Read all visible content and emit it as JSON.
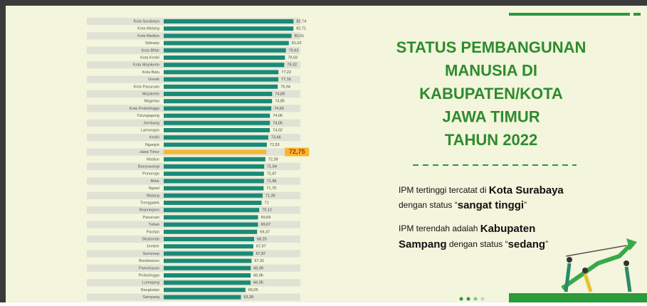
{
  "chart_data": {
    "type": "bar",
    "orientation": "horizontal",
    "categories": [
      "Kota Surabaya",
      "Kota Malang",
      "Kota Madiun",
      "Sidoarjo",
      "Kota Blitar",
      "Kota Kediri",
      "Kota Mojokerto",
      "Kota Batu",
      "Gresik",
      "Kota Pasuruan",
      "Mojokerto",
      "Magetan",
      "Kota Probolinggo",
      "Tulungagung",
      "Jombang",
      "Lamongan",
      "Kediri",
      "Nganjuk",
      "Jawa Timur",
      "Madiun",
      "Banyuwangi",
      "Ponorogo",
      "Blitar",
      "Ngawi",
      "Malang",
      "Trenggalek",
      "Bojonegoro",
      "Pasuruan",
      "Tuban",
      "Pacitan",
      "Situbondo",
      "Jember",
      "Sumenep",
      "Bondowoso",
      "Pamekasan",
      "Probolinggo",
      "Lumajang",
      "Bangkalan",
      "Sampang"
    ],
    "values": [
      82.74,
      82.71,
      82.01,
      81.02,
      79.93,
      79.59,
      79.32,
      77.22,
      77.16,
      76.94,
      74.89,
      74.85,
      74.56,
      74.06,
      74.05,
      74.02,
      73.46,
      72.93,
      72.75,
      72.39,
      71.94,
      71.87,
      71.86,
      71.75,
      71.36,
      71,
      70.12,
      69.69,
      69.67,
      69.37,
      68.25,
      67.97,
      67.87,
      67.31,
      66.99,
      66.96,
      66.95,
      65.05,
      63.39
    ],
    "value_labels": [
      "82,74",
      "82,71",
      "82,01",
      "81,02",
      "79,93",
      "79,59",
      "79,32",
      "77,22",
      "77,16",
      "76,94",
      "74,89",
      "74,85",
      "74,56",
      "74,06",
      "74,05",
      "74,02",
      "73,46",
      "72,93",
      "72,75",
      "72,39",
      "71,94",
      "71,87",
      "71,86",
      "71,75",
      "71,36",
      "71",
      "70,12",
      "69,69",
      "69,67",
      "69,37",
      "68,25",
      "67,97",
      "67,87",
      "67,31",
      "66,99",
      "66,96",
      "66,95",
      "65,05",
      "63,39"
    ],
    "color": "#1a8a78",
    "highlight_color": "#f5b82e",
    "highlight_index": 18,
    "xlim": [
      35,
      85
    ]
  },
  "panel": {
    "title": [
      "STATUS PEMBANGUNAN",
      "MANUSIA DI",
      "KABUPATEN/KOTA",
      "JAWA TIMUR",
      "TAHUN 2022"
    ],
    "notes": [
      [
        [
          "IPM tertinggi tercatat di ",
          false
        ],
        [
          "Kota Surabaya",
          true
        ]
      ],
      [
        [
          "dengan status “",
          false
        ],
        [
          "sangat tinggi",
          true
        ],
        [
          "”",
          false
        ]
      ],
      [
        [
          "IPM terendah adalah ",
          false
        ],
        [
          "Kabupaten",
          true
        ]
      ],
      [
        [
          "Sampang",
          true
        ],
        [
          " dengan status “",
          false
        ],
        [
          "sedang",
          true
        ],
        [
          "”",
          false
        ]
      ]
    ]
  }
}
